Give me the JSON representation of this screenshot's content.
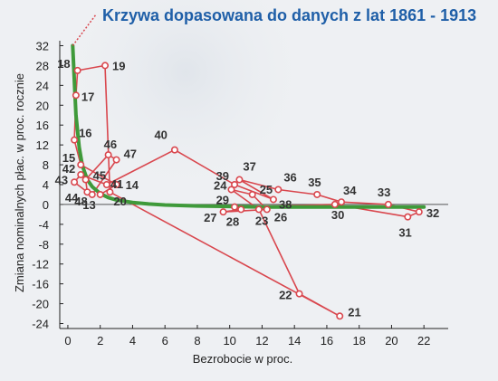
{
  "chart_data": {
    "type": "line",
    "title": "Krzywa dopasowana do danych z lat 1861 - 1913",
    "xlabel": "Bezrobocie w proc.",
    "ylabel": "Zmiana nominalnych płac. w proc. rocznie",
    "xlim": [
      -0.5,
      23.5
    ],
    "ylim": [
      -25,
      33
    ],
    "xticks": [
      "0",
      "2",
      "4",
      "6",
      "8",
      "10",
      "12",
      "14",
      "16",
      "18",
      "20",
      "22"
    ],
    "yticks": [
      "32",
      "28",
      "24",
      "20",
      "16",
      "12",
      "8",
      "4",
      "0",
      "-4",
      "-8",
      "-12",
      "-16",
      "-20",
      "-24"
    ],
    "grid": false,
    "colors": {
      "data_line": "#d9474e",
      "fitted_curve": "#3f9a3a",
      "title": "#1f5fa8",
      "background": "#eef0f3"
    },
    "series": [
      {
        "points": [
          {
            "label": "13",
            "x": 2.0,
            "y": 2.0
          },
          {
            "label": "14",
            "x": 3.0,
            "y": 4.0
          },
          {
            "label": "15",
            "x": 0.8,
            "y": 8.0
          },
          {
            "label": "16",
            "x": 0.4,
            "y": 13.0
          },
          {
            "label": "17",
            "x": 0.5,
            "y": 22.0
          },
          {
            "label": "18",
            "x": 0.6,
            "y": 27.0
          },
          {
            "label": "19",
            "x": 2.3,
            "y": 28.0
          },
          {
            "label": "20",
            "x": 2.6,
            "y": 2.5
          },
          {
            "label": "21",
            "x": 16.8,
            "y": -22.5
          },
          {
            "label": "22",
            "x": 14.3,
            "y": -18.0
          },
          {
            "label": "23",
            "x": 11.8,
            "y": -1.0
          },
          {
            "label": "24",
            "x": 10.1,
            "y": 3.0
          },
          {
            "label": "25",
            "x": 11.4,
            "y": 2.0
          },
          {
            "label": "26",
            "x": 12.3,
            "y": -1.0
          },
          {
            "label": "27",
            "x": 9.6,
            "y": -1.5
          },
          {
            "label": "28",
            "x": 10.7,
            "y": -1.0
          },
          {
            "label": "29",
            "x": 10.3,
            "y": -0.5
          },
          {
            "label": "30",
            "x": 16.5,
            "y": 0.0
          },
          {
            "label": "31",
            "x": 21.0,
            "y": -2.5
          },
          {
            "label": "32",
            "x": 21.7,
            "y": -1.5
          },
          {
            "label": "33",
            "x": 19.8,
            "y": 0.0
          },
          {
            "label": "34",
            "x": 16.9,
            "y": 0.5
          },
          {
            "label": "35",
            "x": 15.4,
            "y": 2.0
          },
          {
            "label": "36",
            "x": 13.0,
            "y": 3.0
          },
          {
            "label": "37",
            "x": 10.6,
            "y": 5.0
          },
          {
            "label": "38",
            "x": 12.7,
            "y": 1.0
          },
          {
            "label": "39",
            "x": 10.3,
            "y": 4.0
          },
          {
            "label": "40",
            "x": 6.6,
            "y": 11.0
          },
          {
            "label": "41",
            "x": 2.4,
            "y": 4.0
          },
          {
            "label": "42",
            "x": 0.8,
            "y": 6.0
          },
          {
            "label": "43",
            "x": 0.4,
            "y": 4.5
          },
          {
            "label": "44",
            "x": 1.2,
            "y": 2.5
          },
          {
            "label": "45",
            "x": 1.1,
            "y": 5.0
          },
          {
            "label": "46",
            "x": 2.5,
            "y": 10.0
          },
          {
            "label": "47",
            "x": 3.0,
            "y": 9.0
          },
          {
            "label": "48",
            "x": 1.5,
            "y": 2.0
          }
        ]
      },
      {
        "x": [
          0.3,
          0.5,
          0.7,
          0.9,
          1.2,
          1.5,
          2.0,
          2.5,
          3.0,
          4.0,
          5.0,
          6.0,
          8.0,
          10.0,
          12.0,
          14.0,
          16.0,
          18.0,
          20.0,
          22.0
        ],
        "y": [
          32.0,
          18.0,
          11.5,
          7.8,
          5.0,
          3.6,
          2.2,
          1.4,
          0.9,
          0.4,
          0.1,
          -0.1,
          -0.3,
          -0.4,
          -0.5,
          -0.5,
          -0.5,
          -0.5,
          -0.5,
          -0.5
        ]
      }
    ]
  }
}
